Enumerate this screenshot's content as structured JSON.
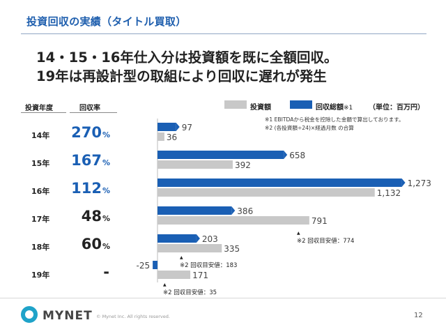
{
  "slide": {
    "title": "投資回収の実績（タイトル買取）",
    "headline_line1": "14・15・16年仕入分は投資額を既に全額回収。",
    "headline_line2": "19年は再設計型の取組により回収に遅れが発生",
    "page_number": "12"
  },
  "table": {
    "year_header": "投資年度",
    "rate_header": "回収率",
    "rows": [
      {
        "year": "14年",
        "rate": "270",
        "unit": "%",
        "color": "#1a5fb4"
      },
      {
        "year": "15年",
        "rate": "167",
        "unit": "%",
        "color": "#1a5fb4"
      },
      {
        "year": "16年",
        "rate": "112",
        "unit": "%",
        "color": "#1a5fb4"
      },
      {
        "year": "17年",
        "rate": "48",
        "unit": "%",
        "color": "#222222"
      },
      {
        "year": "18年",
        "rate": "60",
        "unit": "%",
        "color": "#222222"
      },
      {
        "year": "19年",
        "rate": "-",
        "unit": "",
        "color": "#222222"
      }
    ]
  },
  "legend": {
    "investment": "投資額",
    "recovery": "回収総額",
    "recovery_note": "※1",
    "unit": "（単位：百万円）"
  },
  "notes": {
    "note1": "※1 EBITDAから税金を控除した金額で算出しております。",
    "note2": "※2 (各投資額÷24)×経過月数 の合算"
  },
  "thresholds": {
    "y17": "※2 回収目安値：774",
    "y18": "※2 回収目安値：183",
    "y19": "※2 回収目安値：35"
  },
  "chart_data": {
    "type": "bar",
    "orientation": "horizontal",
    "categories": [
      "14年",
      "15年",
      "16年",
      "17年",
      "18年",
      "19年"
    ],
    "series": [
      {
        "name": "回収総額",
        "color": "#1a5fb4",
        "values": [
          97,
          658,
          1273,
          386,
          203,
          -25
        ],
        "labels": [
          "97",
          "658",
          "1,273",
          "386",
          "203",
          "-25"
        ]
      },
      {
        "name": "投資額",
        "color": "#c8c8c8",
        "values": [
          36,
          392,
          1132,
          791,
          335,
          171
        ],
        "labels": [
          "36",
          "392",
          "1,132",
          "791",
          "335",
          "171"
        ]
      }
    ],
    "targets": [
      {
        "category": "17年",
        "value": 774
      },
      {
        "category": "18年",
        "value": 183
      },
      {
        "category": "19年",
        "value": 35
      }
    ]
  },
  "footer": {
    "logo_text": "MYNET",
    "copyright": "© Mynet Inc. All rights reserved."
  }
}
